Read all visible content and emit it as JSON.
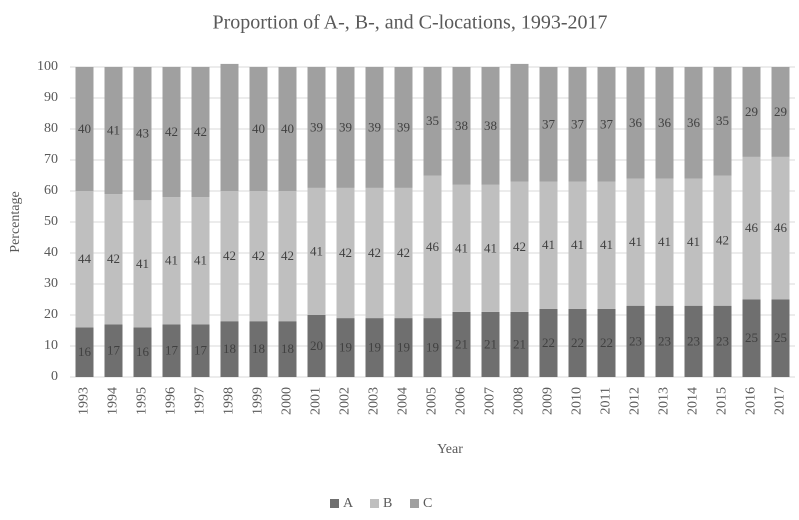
{
  "chart_data": {
    "type": "stacked_bar",
    "title": "Proportion of A-, B-, and C-locations, 1993-2017",
    "x_label": "Year",
    "y_label": "Percentage",
    "categories": [
      "1993",
      "1994",
      "1995",
      "1996",
      "1997",
      "1998",
      "1999",
      "2000",
      "2001",
      "2002",
      "2003",
      "2004",
      "2005",
      "2006",
      "2007",
      "2008",
      "2009",
      "2010",
      "2011",
      "2012",
      "2013",
      "2014",
      "2015",
      "2016",
      "2017"
    ],
    "series": [
      {
        "name": "A",
        "color": "#6f6f6f",
        "values": [
          16,
          17,
          16,
          17,
          17,
          18,
          18,
          18,
          20,
          19,
          19,
          19,
          19,
          21,
          21,
          21,
          22,
          22,
          22,
          23,
          23,
          23,
          23,
          25,
          25
        ]
      },
      {
        "name": "B",
        "color": "#bfbfbf",
        "values": [
          44,
          42,
          41,
          41,
          41,
          42,
          42,
          42,
          41,
          42,
          42,
          42,
          46,
          41,
          41,
          42,
          41,
          41,
          41,
          41,
          41,
          41,
          42,
          46,
          46
        ]
      },
      {
        "name": "C",
        "color": "#a0a0a0",
        "values": [
          40,
          41,
          43,
          42,
          42,
          41,
          40,
          40,
          39,
          39,
          39,
          39,
          35,
          38,
          38,
          38,
          37,
          37,
          37,
          36,
          36,
          36,
          35,
          29,
          29
        ],
        "value_labels": [
          "40",
          "41",
          "43",
          "42",
          "42",
          null,
          "40",
          "40",
          "39",
          "39",
          "39",
          "39",
          "35",
          "38",
          "38",
          null,
          "37",
          "37",
          "37",
          "36",
          "36",
          "36",
          "35",
          "29",
          "29"
        ]
      }
    ],
    "ylim": [
      0,
      100
    ],
    "yticks": [
      0,
      10,
      20,
      30,
      40,
      50,
      60,
      70,
      80,
      90,
      100
    ],
    "grid": true,
    "legend": "bottom"
  }
}
